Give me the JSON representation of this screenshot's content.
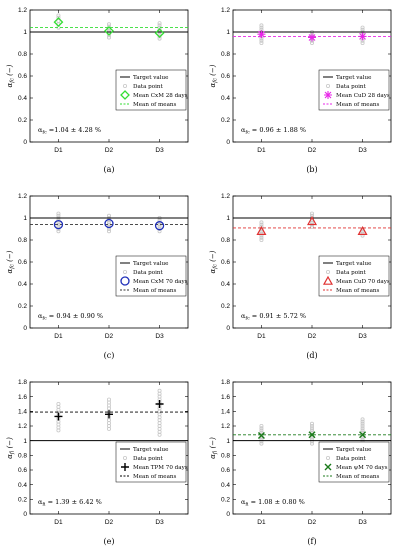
{
  "colors": {
    "target": "#000000",
    "point": "#c8c8c8",
    "green": "#33dd33",
    "magenta": "#e826e8",
    "blue": "#1f2fb8",
    "red": "#e03030",
    "black": "#000000",
    "darkgreen": "#1a7a1a"
  },
  "chart_data": [
    {
      "panel": "a",
      "caption": "(a)",
      "type": "scatter",
      "x_ticks": [
        "D1",
        "D2",
        "D3"
      ],
      "ylim": [
        0,
        1.2
      ],
      "yticks": [
        "0",
        "0.2",
        "0.4",
        "0.6",
        "0.8",
        "1",
        "1.2"
      ],
      "ylabel": "α_fc (−)",
      "target": 1.0,
      "means": [
        1.09,
        1.01,
        0.99
      ],
      "mean_of_means": 1.04,
      "marker": "diamond",
      "color": "#33dd33",
      "mom_color": "#33dd33",
      "points": [
        [
          1.04,
          1.07,
          1.1,
          1.13,
          1.15
        ],
        [
          0.95,
          0.97,
          0.99,
          1.01,
          1.03,
          1.05,
          1.07
        ],
        [
          0.94,
          0.96,
          0.98,
          1.0,
          1.02,
          1.04,
          1.06,
          1.08
        ]
      ],
      "legend": [
        "Target value",
        "Data point",
        "Mean CxM 28 days",
        "Mean of means"
      ],
      "annotation": "α_fc =1.04 ± 4.28 %"
    },
    {
      "panel": "b",
      "caption": "(b)",
      "type": "scatter",
      "x_ticks": [
        "D1",
        "D2",
        "D3"
      ],
      "ylim": [
        0,
        1.2
      ],
      "yticks": [
        "0",
        "0.2",
        "0.4",
        "0.6",
        "0.8",
        "1",
        "1.2"
      ],
      "ylabel": "α_fc (−)",
      "target": 1.0,
      "means": [
        0.98,
        0.95,
        0.96
      ],
      "mean_of_means": 0.96,
      "marker": "star",
      "color": "#e826e8",
      "mom_color": "#e826e8",
      "points": [
        [
          0.9,
          0.92,
          0.94,
          0.96,
          0.98,
          1.0,
          1.02,
          1.04,
          1.06
        ],
        [
          0.9,
          0.92,
          0.94,
          0.96,
          0.98,
          1.0
        ],
        [
          0.9,
          0.92,
          0.94,
          0.96,
          0.98,
          1.0,
          1.02,
          1.04
        ]
      ],
      "legend": [
        "Target value",
        "Data point",
        "Mean CuD 28 days",
        "Mean of means"
      ],
      "annotation": "α_fc = 0.96 ± 1.88 %"
    },
    {
      "panel": "c",
      "caption": "(c)",
      "type": "scatter",
      "x_ticks": [
        "D1",
        "D2",
        "D3"
      ],
      "ylim": [
        0,
        1.2
      ],
      "yticks": [
        "0",
        "0.2",
        "0.4",
        "0.6",
        "0.8",
        "1",
        "1.2"
      ],
      "ylabel": "α_fc (−)",
      "target": 1.0,
      "means": [
        0.94,
        0.95,
        0.93
      ],
      "mean_of_means": 0.94,
      "marker": "circle",
      "color": "#1f2fb8",
      "mom_color": "#333333",
      "points": [
        [
          0.88,
          0.9,
          0.92,
          0.94,
          0.96,
          0.98,
          1.0,
          1.02,
          1.04
        ],
        [
          0.88,
          0.9,
          0.92,
          0.94,
          0.96,
          0.98,
          1.0,
          1.02
        ],
        [
          0.88,
          0.9,
          0.92,
          0.94,
          0.96,
          0.98,
          1.0
        ]
      ],
      "legend": [
        "Target value",
        "Data point",
        "Mean CxM 70 days",
        "Mean of means"
      ],
      "annotation": "α_fc = 0.94 ± 0.90 %"
    },
    {
      "panel": "d",
      "caption": "(d)",
      "type": "scatter",
      "x_ticks": [
        "D1",
        "D2",
        "D3"
      ],
      "ylim": [
        0,
        1.2
      ],
      "yticks": [
        "0",
        "0.2",
        "0.4",
        "0.6",
        "0.8",
        "1",
        "1.2"
      ],
      "ylabel": "α_fc (−)",
      "target": 1.0,
      "means": [
        0.88,
        0.97,
        0.88
      ],
      "mean_of_means": 0.91,
      "marker": "triangle",
      "color": "#e03030",
      "mom_color": "#e03030",
      "points": [
        [
          0.8,
          0.82,
          0.84,
          0.86,
          0.88,
          0.9,
          0.92,
          0.94,
          0.96
        ],
        [
          0.92,
          0.94,
          0.96,
          0.98,
          1.0,
          1.02,
          1.04
        ],
        [
          0.84,
          0.86,
          0.88,
          0.9
        ]
      ],
      "legend": [
        "Target value",
        "Data point",
        "Mean CuD 70 days",
        "Mean of means"
      ],
      "annotation": "α_fc = 0.91 ± 5.72 %"
    },
    {
      "panel": "e",
      "caption": "(e)",
      "type": "scatter",
      "x_ticks": [
        "D1",
        "D2",
        "D3"
      ],
      "ylim": [
        0,
        1.8
      ],
      "yticks": [
        "0",
        "0.2",
        "0.4",
        "0.6",
        "0.8",
        "1",
        "1.2",
        "1.4",
        "1.6",
        "1.8"
      ],
      "ylabel": "α_fi (−)",
      "target": 1.0,
      "means": [
        1.33,
        1.36,
        1.5
      ],
      "mean_of_means": 1.39,
      "marker": "plus",
      "color": "#000000",
      "mom_color": "#000000",
      "points": [
        [
          1.14,
          1.18,
          1.22,
          1.26,
          1.3,
          1.34,
          1.38,
          1.42,
          1.46,
          1.5
        ],
        [
          1.16,
          1.2,
          1.24,
          1.28,
          1.32,
          1.36,
          1.4,
          1.44,
          1.48,
          1.52,
          1.56
        ],
        [
          1.08,
          1.12,
          1.16,
          1.2,
          1.24,
          1.28,
          1.32,
          1.36,
          1.4,
          1.44,
          1.48,
          1.52,
          1.56,
          1.6,
          1.64,
          1.68
        ]
      ],
      "legend": [
        "Target value",
        "Data point",
        "Mean TPM 70 days",
        "Mean of means"
      ],
      "annotation": "α_fi = 1.39 ± 6.42 %"
    },
    {
      "panel": "f",
      "caption": "(f)",
      "type": "scatter",
      "x_ticks": [
        "D1",
        "D2",
        "D3"
      ],
      "ylim": [
        0,
        1.8
      ],
      "yticks": [
        "0",
        "0.2",
        "0.4",
        "0.6",
        "0.8",
        "1",
        "1.2",
        "1.4",
        "1.6",
        "1.8"
      ],
      "ylabel": "α_fi (−)",
      "target": 1.0,
      "means": [
        1.07,
        1.08,
        1.08
      ],
      "mean_of_means": 1.08,
      "marker": "cross",
      "color": "#1a7a1a",
      "mom_color": "#1a7a1a",
      "points": [
        [
          0.96,
          0.99,
          1.02,
          1.05,
          1.08,
          1.11,
          1.14,
          1.17,
          1.2
        ],
        [
          0.96,
          0.99,
          1.02,
          1.05,
          1.08,
          1.11,
          1.14,
          1.17,
          1.2,
          1.23
        ],
        [
          0.96,
          0.99,
          1.02,
          1.05,
          1.08,
          1.11,
          1.14,
          1.17,
          1.2,
          1.23,
          1.26,
          1.29
        ]
      ],
      "legend": [
        "Target value",
        "Data point",
        "Mean ψM 70 days",
        "Mean of means"
      ],
      "annotation": "α_fi = 1.08 ± 0.80 %"
    }
  ]
}
